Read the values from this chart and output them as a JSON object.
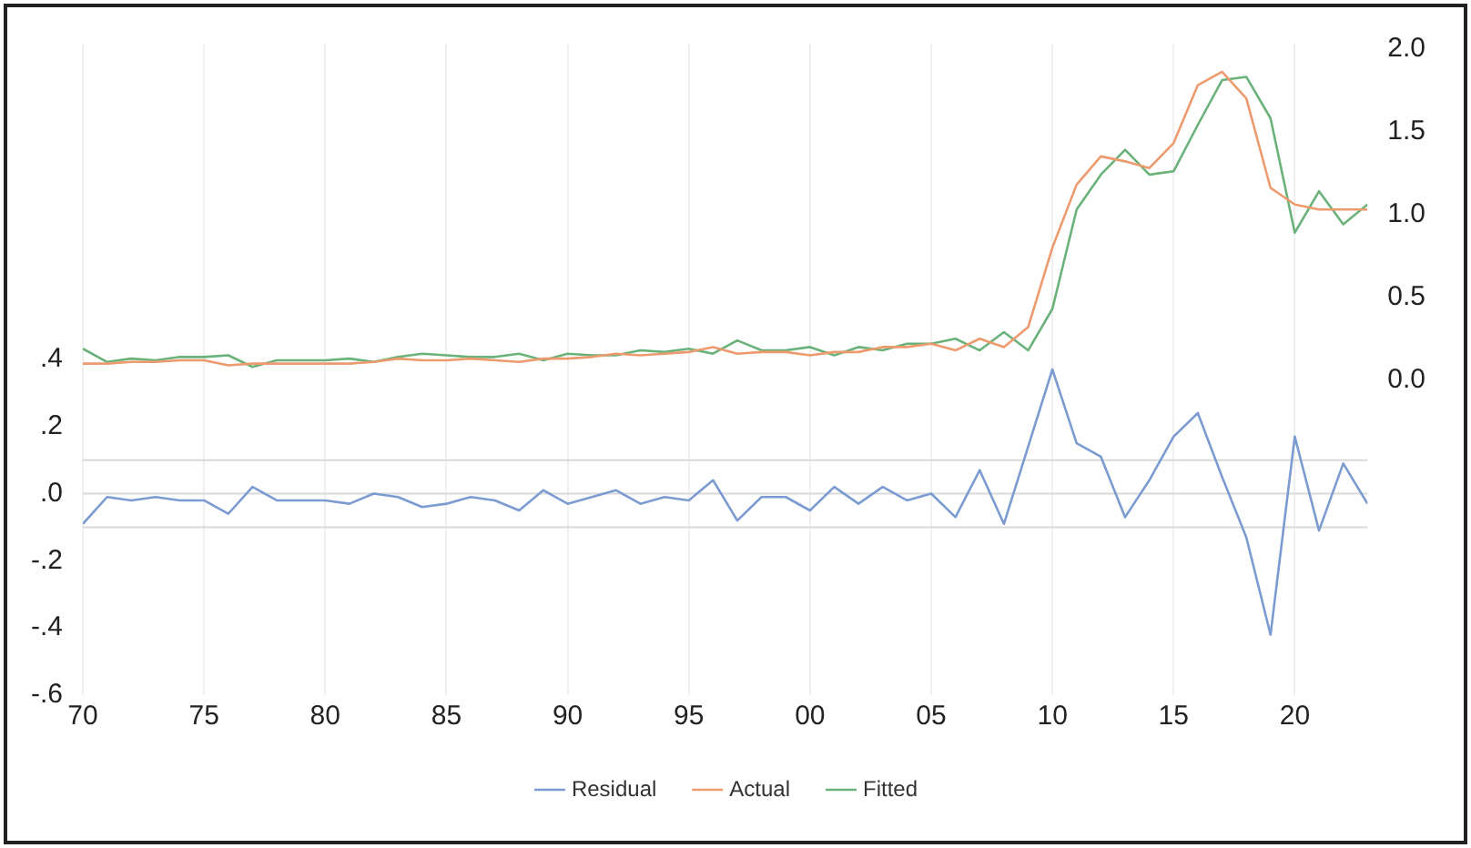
{
  "chart_data": {
    "type": "line",
    "x": [
      1970,
      1971,
      1972,
      1973,
      1974,
      1975,
      1976,
      1977,
      1978,
      1979,
      1980,
      1981,
      1982,
      1983,
      1984,
      1985,
      1986,
      1987,
      1988,
      1989,
      1990,
      1991,
      1992,
      1993,
      1994,
      1995,
      1996,
      1997,
      1998,
      1999,
      2000,
      2001,
      2002,
      2003,
      2004,
      2005,
      2006,
      2007,
      2008,
      2009,
      2010,
      2011,
      2012,
      2013,
      2014,
      2015,
      2016,
      2017,
      2018,
      2019,
      2020,
      2021,
      2022,
      2023
    ],
    "series": [
      {
        "name": "Residual",
        "color": "#7b9bd1",
        "values": [
          -0.09,
          -0.01,
          -0.02,
          -0.01,
          -0.02,
          -0.02,
          -0.06,
          0.02,
          -0.02,
          -0.02,
          -0.02,
          -0.03,
          0.0,
          -0.01,
          -0.04,
          -0.03,
          -0.01,
          -0.02,
          -0.05,
          0.01,
          -0.03,
          -0.01,
          0.01,
          -0.03,
          -0.01,
          -0.02,
          0.04,
          -0.08,
          -0.01,
          -0.01,
          -0.05,
          0.02,
          -0.03,
          0.02,
          -0.02,
          0.0,
          -0.07,
          0.07,
          -0.09,
          0.14,
          0.37,
          0.15,
          0.11,
          -0.07,
          0.04,
          0.17,
          0.24,
          0.05,
          -0.13,
          -0.42,
          0.17,
          -0.11,
          0.09,
          -0.03
        ]
      },
      {
        "name": "Actual",
        "color": "#ed9b6e",
        "axis": "y2",
        "values": [
          0.1,
          0.1,
          0.11,
          0.11,
          0.12,
          0.12,
          0.09,
          0.1,
          0.1,
          0.1,
          0.1,
          0.1,
          0.11,
          0.13,
          0.12,
          0.12,
          0.13,
          0.12,
          0.11,
          0.13,
          0.13,
          0.14,
          0.16,
          0.15,
          0.16,
          0.17,
          0.2,
          0.16,
          0.17,
          0.17,
          0.15,
          0.17,
          0.17,
          0.2,
          0.2,
          0.22,
          0.18,
          0.25,
          0.2,
          0.32,
          0.8,
          1.18,
          1.35,
          1.32,
          1.28,
          1.43,
          1.78,
          1.86,
          1.7,
          1.16,
          1.06,
          1.03,
          1.03,
          1.03
        ]
      },
      {
        "name": "Fitted",
        "color": "#6ab27a",
        "axis": "y2",
        "values": [
          0.19,
          0.11,
          0.13,
          0.12,
          0.14,
          0.14,
          0.15,
          0.08,
          0.12,
          0.12,
          0.12,
          0.13,
          0.11,
          0.14,
          0.16,
          0.15,
          0.14,
          0.14,
          0.16,
          0.12,
          0.16,
          0.15,
          0.15,
          0.18,
          0.17,
          0.19,
          0.16,
          0.24,
          0.18,
          0.18,
          0.2,
          0.15,
          0.2,
          0.18,
          0.22,
          0.22,
          0.25,
          0.18,
          0.29,
          0.18,
          0.43,
          1.03,
          1.24,
          1.39,
          1.24,
          1.26,
          1.54,
          1.81,
          1.83,
          1.58,
          0.89,
          1.14,
          0.94,
          1.06
        ]
      }
    ],
    "xlim": [
      1970,
      2023
    ],
    "xticks": [
      {
        "value": 1970,
        "label": "70"
      },
      {
        "value": 1975,
        "label": "75"
      },
      {
        "value": 1980,
        "label": "80"
      },
      {
        "value": 1985,
        "label": "85"
      },
      {
        "value": 1990,
        "label": "90"
      },
      {
        "value": 1995,
        "label": "95"
      },
      {
        "value": 2000,
        "label": "00"
      },
      {
        "value": 2005,
        "label": "05"
      },
      {
        "value": 2010,
        "label": "10"
      },
      {
        "value": 2015,
        "label": "15"
      },
      {
        "value": 2020,
        "label": "20"
      }
    ],
    "ylim": [
      -0.6,
      1.34
    ],
    "yticks": [
      {
        "value": -0.6,
        "label": "-.6"
      },
      {
        "value": -0.4,
        "label": "-.4"
      },
      {
        "value": -0.2,
        "label": "-.2"
      },
      {
        "value": 0,
        "label": ".0"
      },
      {
        "value": 0.2,
        "label": ".2"
      },
      {
        "value": 0.4,
        "label": ".4"
      }
    ],
    "y2lim": [
      -1.9,
      2.03
    ],
    "y2ticks": [
      {
        "value": 0,
        "label": "0.0"
      },
      {
        "value": 0.5,
        "label": "0.5"
      },
      {
        "value": 1.0,
        "label": "1.0"
      },
      {
        "value": 1.5,
        "label": "1.5"
      },
      {
        "value": 2.0,
        "label": "2.0"
      }
    ],
    "ref_lines": [
      {
        "axis": "y",
        "value": 0.1,
        "color": "#d9d9d9"
      },
      {
        "axis": "y",
        "value": 0,
        "color": "#d9d9d9"
      },
      {
        "axis": "y",
        "value": -0.1,
        "color": "#d9d9d9"
      }
    ],
    "grid": "x",
    "legend": "bottom",
    "marker": "none",
    "line_style": "solid"
  }
}
